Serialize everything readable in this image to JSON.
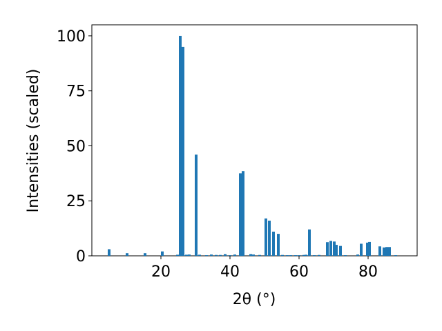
{
  "chart_data": {
    "type": "bar",
    "xlabel": "2θ (°)",
    "ylabel": "Intensities (scaled)",
    "x": [
      5,
      10.2,
      15.4,
      20.4,
      24.8,
      25.6,
      26.4,
      27.4,
      28.2,
      30.2,
      31.2,
      33.2,
      34.6,
      36,
      37.2,
      38.6,
      40,
      41.4,
      43,
      43.8,
      46,
      46.8,
      48.6,
      50.4,
      51.4,
      52.6,
      54,
      55.2,
      56.6,
      57.6,
      59,
      60,
      61.4,
      62,
      63,
      64.4,
      65.8,
      68.2,
      69.2,
      70.2,
      70.8,
      72,
      73.4,
      77,
      78,
      79.8,
      80.4,
      83.4,
      84.6,
      85.4,
      86.2,
      88
    ],
    "values": [
      3,
      1.2,
      1.2,
      2,
      0.5,
      100,
      95,
      0.5,
      0.6,
      46,
      0.5,
      0.3,
      0.6,
      0.4,
      0.4,
      0.8,
      0.3,
      0.6,
      37.5,
      38.5,
      0.8,
      0.6,
      0.4,
      17,
      16,
      11,
      10,
      0.4,
      0.3,
      0.3,
      0.3,
      0.3,
      0.4,
      0.5,
      12,
      0.3,
      0.4,
      6.2,
      6.8,
      6.5,
      5,
      4.5,
      0.3,
      0.6,
      5.5,
      6,
      6.3,
      4.3,
      3.8,
      4,
      4,
      0.3
    ],
    "color": "#1f77b4",
    "xlim": [
      0,
      94.2
    ],
    "ylim": [
      0,
      105
    ],
    "xticks": [
      20,
      40,
      60,
      80
    ],
    "yticks": [
      0,
      25,
      50,
      75,
      100
    ]
  }
}
